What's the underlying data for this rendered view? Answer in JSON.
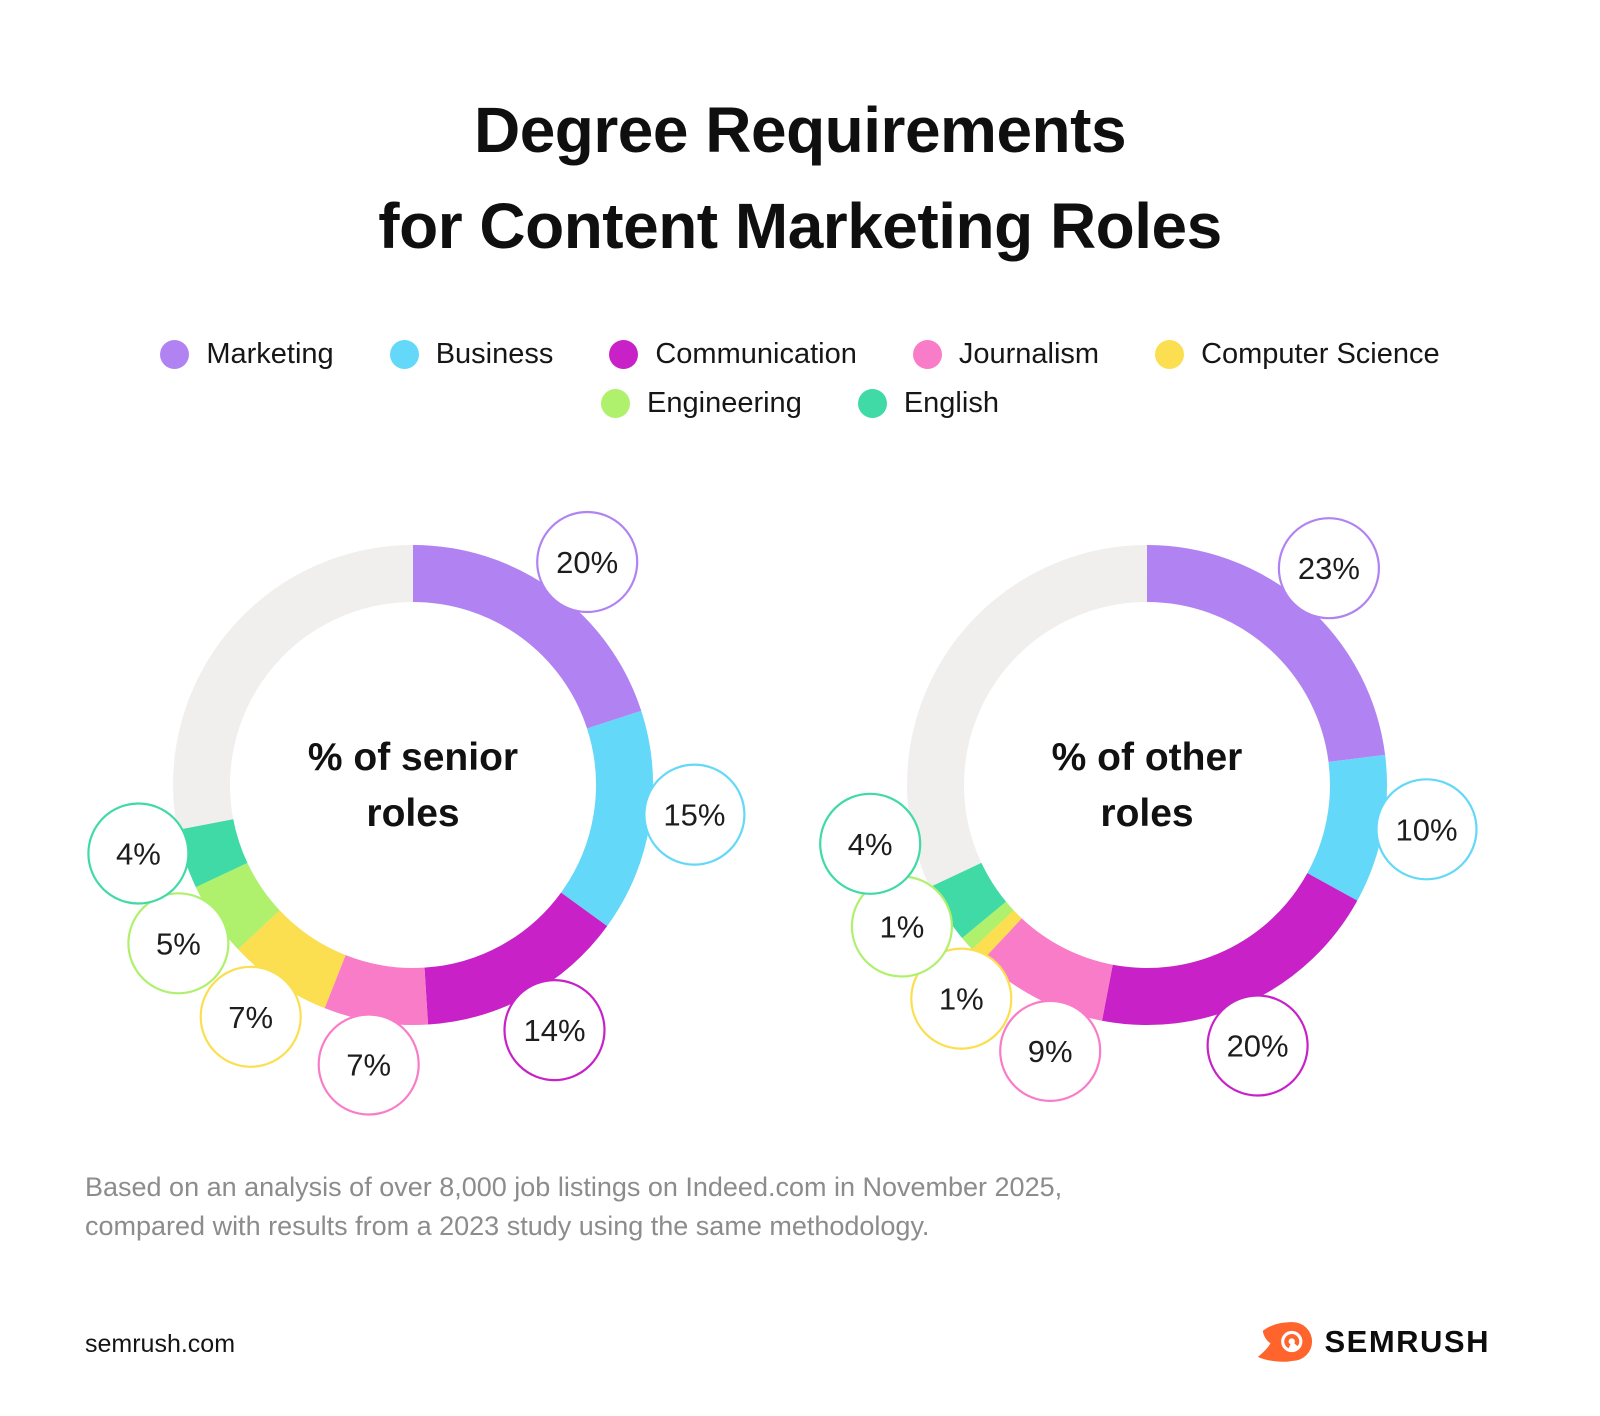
{
  "title": {
    "lines": [
      "Degree Requirements",
      "for Content Marketing Roles"
    ]
  },
  "legend": {
    "items": [
      {
        "label": "Marketing",
        "color": "#b183f2"
      },
      {
        "label": "Business",
        "color": "#63d8f9"
      },
      {
        "label": "Communication",
        "color": "#c721c7"
      },
      {
        "label": "Journalism",
        "color": "#f97cc8"
      },
      {
        "label": "Computer Science",
        "color": "#fbdf50"
      },
      {
        "label": "Engineering",
        "color": "#aff06d"
      },
      {
        "label": "English",
        "color": "#3fdaa5"
      }
    ]
  },
  "chart_data": [
    {
      "type": "pie",
      "variant": "donut",
      "title": "% of senior roles",
      "center_label_lines": [
        "% of senior",
        "roles"
      ],
      "categories": [
        "Marketing",
        "Business",
        "Communication",
        "Journalism",
        "Computer Science",
        "Engineering",
        "English"
      ],
      "values": [
        20,
        15,
        14,
        7,
        7,
        5,
        4
      ],
      "labels": [
        "20%",
        "15%",
        "14%",
        "7%",
        "7%",
        "5%",
        "4%"
      ],
      "colors": [
        "#b183f2",
        "#63d8f9",
        "#c721c7",
        "#f97cc8",
        "#fbdf50",
        "#aff06d",
        "#3fdaa5"
      ],
      "unit": "%",
      "remainder_value": 28,
      "remainder_color": "#f0efed",
      "start_angle_deg": 0,
      "direction": "clockwise",
      "legend_position": "top"
    },
    {
      "type": "pie",
      "variant": "donut",
      "title": "% of other roles",
      "center_label_lines": [
        "% of other",
        "roles"
      ],
      "categories": [
        "Marketing",
        "Business",
        "Communication",
        "Journalism",
        "Computer Science",
        "Engineering",
        "English"
      ],
      "values": [
        23,
        10,
        20,
        9,
        1,
        1,
        4
      ],
      "labels": [
        "23%",
        "10%",
        "20%",
        "9%",
        "1%",
        "1%",
        "4%"
      ],
      "colors": [
        "#b183f2",
        "#63d8f9",
        "#c721c7",
        "#f97cc8",
        "#fbdf50",
        "#aff06d",
        "#3fdaa5"
      ],
      "unit": "%",
      "remainder_value": 32,
      "remainder_color": "#f0efed",
      "start_angle_deg": 0,
      "direction": "clockwise",
      "legend_position": "top"
    }
  ],
  "footnote": {
    "lines": [
      "Based on an analysis of over 8,000 job listings on Indeed.com in November 2025,",
      "compared with results from a 2023 study using the same methodology."
    ]
  },
  "footer": {
    "site": "semrush.com",
    "brand": "SEMRUSH"
  },
  "colors": {
    "background": "#ffffff",
    "title_text": "#0f0f0f",
    "legend_text": "#161616",
    "note_text": "#8c8c8c",
    "bubble_text": "#1d1d1d",
    "track": "#f0efed",
    "brand_orange": "#ff642d"
  }
}
